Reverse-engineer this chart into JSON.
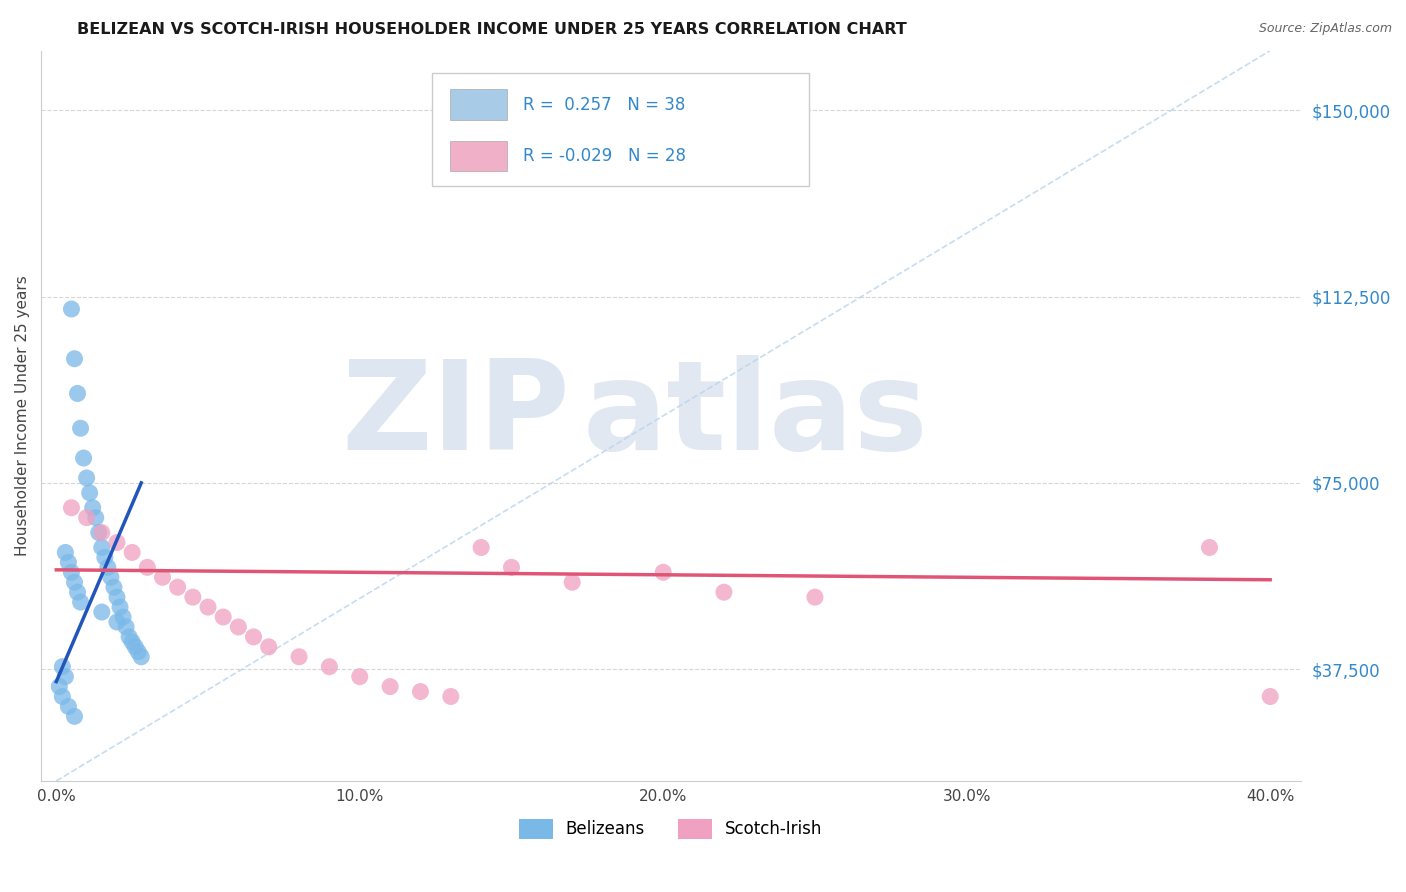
{
  "title": "BELIZEAN VS SCOTCH-IRISH HOUSEHOLDER INCOME UNDER 25 YEARS CORRELATION CHART",
  "source": "Source: ZipAtlas.com",
  "xlabel_ticks": [
    "0.0%",
    "10.0%",
    "20.0%",
    "30.0%",
    "40.0%"
  ],
  "xlabel_values": [
    0.0,
    10.0,
    20.0,
    30.0,
    40.0
  ],
  "ylabel_ticks": [
    "$37,500",
    "$75,000",
    "$112,500",
    "$150,000"
  ],
  "ylabel_values": [
    37500,
    75000,
    112500,
    150000
  ],
  "xlim": [
    -0.5,
    41.0
  ],
  "ylim": [
    15000,
    162000
  ],
  "watermark_zip": "ZIP",
  "watermark_atlas": "atlas",
  "legend_entries": [
    {
      "label": "Belizeans",
      "color": "#a8cce8",
      "R": "0.257",
      "N": "38"
    },
    {
      "label": "Scotch-Irish",
      "color": "#f0b0c8",
      "R": "-0.029",
      "N": "28"
    }
  ],
  "belizean_x": [
    0.5,
    0.6,
    0.7,
    0.8,
    0.9,
    1.0,
    1.1,
    1.2,
    1.3,
    1.4,
    1.5,
    1.6,
    1.7,
    1.8,
    1.9,
    2.0,
    2.1,
    2.2,
    2.3,
    2.4,
    2.5,
    2.6,
    2.7,
    2.8,
    0.3,
    0.4,
    0.5,
    0.6,
    0.7,
    0.8,
    0.2,
    0.3,
    0.1,
    0.2,
    1.5,
    2.0,
    0.4,
    0.6
  ],
  "belizean_y": [
    110000,
    100000,
    93000,
    86000,
    80000,
    76000,
    73000,
    70000,
    68000,
    65000,
    62000,
    60000,
    58000,
    56000,
    54000,
    52000,
    50000,
    48000,
    46000,
    44000,
    43000,
    42000,
    41000,
    40000,
    61000,
    59000,
    57000,
    55000,
    53000,
    51000,
    38000,
    36000,
    34000,
    32000,
    49000,
    47000,
    30000,
    28000
  ],
  "scotchirish_x": [
    0.5,
    1.0,
    1.5,
    2.0,
    2.5,
    3.0,
    3.5,
    4.0,
    4.5,
    5.0,
    5.5,
    6.0,
    6.5,
    7.0,
    8.0,
    9.0,
    10.0,
    11.0,
    12.0,
    13.0,
    14.0,
    15.0,
    17.0,
    20.0,
    22.0,
    25.0,
    38.0,
    40.0
  ],
  "scotchirish_y": [
    70000,
    68000,
    65000,
    63000,
    61000,
    58000,
    56000,
    54000,
    52000,
    50000,
    48000,
    46000,
    44000,
    42000,
    40000,
    38000,
    36000,
    34000,
    33000,
    32000,
    62000,
    58000,
    55000,
    57000,
    53000,
    52000,
    62000,
    32000
  ],
  "blue_trend_x": [
    0.0,
    2.8
  ],
  "blue_trend_y": [
    35000,
    75000
  ],
  "pink_trend_x": [
    0.0,
    40.0
  ],
  "pink_trend_y": [
    57500,
    55500
  ],
  "diag_line_x": [
    0.0,
    40.0
  ],
  "diag_line_y": [
    15000,
    162000
  ],
  "title_color": "#1a1a1a",
  "source_color": "#666666",
  "blue_dot_color": "#7ab8e8",
  "pink_dot_color": "#f0a0c0",
  "blue_line_color": "#2255bb",
  "pink_line_color": "#e05575",
  "diag_line_color": "#b8d4ee",
  "grid_color": "#cccccc",
  "background_color": "#ffffff",
  "R_color": "#3388cc",
  "N_color": "#3388cc",
  "right_label_color": "#3388cc"
}
